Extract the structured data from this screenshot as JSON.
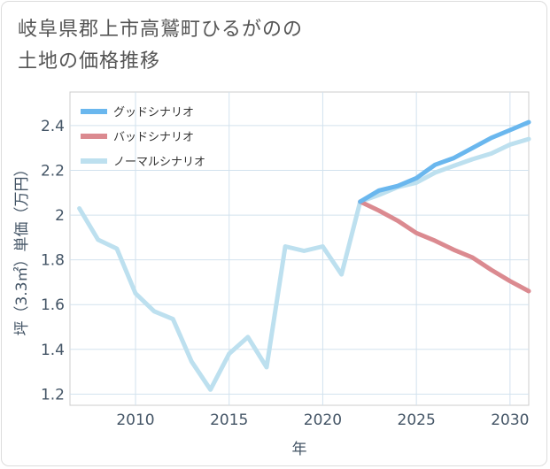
{
  "title_lines": [
    "岐阜県郡上市高鷲町ひるがのの",
    "土地の価格推移"
  ],
  "chart_data": {
    "type": "line",
    "xlabel": "年",
    "ylabel": "坪（3.3㎡）単価（万円）",
    "xlim": [
      2006.5,
      2031
    ],
    "ylim": [
      1.15,
      2.55
    ],
    "x_ticks": [
      2010,
      2015,
      2020,
      2025,
      2030
    ],
    "y_ticks": [
      1.2,
      1.4,
      1.6,
      1.8,
      2,
      2.2,
      2.4
    ],
    "y_tick_labels": [
      "1.2",
      "1.4",
      "1.6",
      "1.8",
      "2",
      "2.2",
      "2.4"
    ],
    "grid": true,
    "legend_position": "top-left",
    "series": [
      {
        "name": "グッドシナリオ",
        "color": "#6ab7ee",
        "x": [
          2022,
          2023,
          2024,
          2025,
          2026,
          2027,
          2028,
          2029,
          2030,
          2031
        ],
        "values": [
          2.06,
          2.11,
          2.13,
          2.165,
          2.225,
          2.255,
          2.3,
          2.345,
          2.38,
          2.415
        ]
      },
      {
        "name": "バッドシナリオ",
        "color": "#db8a90",
        "x": [
          2022,
          2023,
          2024,
          2025,
          2026,
          2027,
          2028,
          2029,
          2030,
          2031
        ],
        "values": [
          2.06,
          2.02,
          1.975,
          1.92,
          1.885,
          1.845,
          1.81,
          1.755,
          1.705,
          1.66
        ]
      },
      {
        "name": "ノーマルシナリオ",
        "color": "#bde0ef",
        "x": [
          2007,
          2008,
          2009,
          2010,
          2011,
          2012,
          2013,
          2014,
          2015,
          2016,
          2017,
          2018,
          2019,
          2020,
          2021,
          2022,
          2023,
          2024,
          2025,
          2026,
          2027,
          2028,
          2029,
          2030,
          2031
        ],
        "values": [
          2.03,
          1.89,
          1.85,
          1.65,
          1.57,
          1.535,
          1.345,
          1.22,
          1.38,
          1.455,
          1.32,
          1.86,
          1.84,
          1.86,
          1.735,
          2.06,
          2.09,
          2.125,
          2.145,
          2.19,
          2.22,
          2.25,
          2.275,
          2.315,
          2.34
        ]
      }
    ]
  }
}
